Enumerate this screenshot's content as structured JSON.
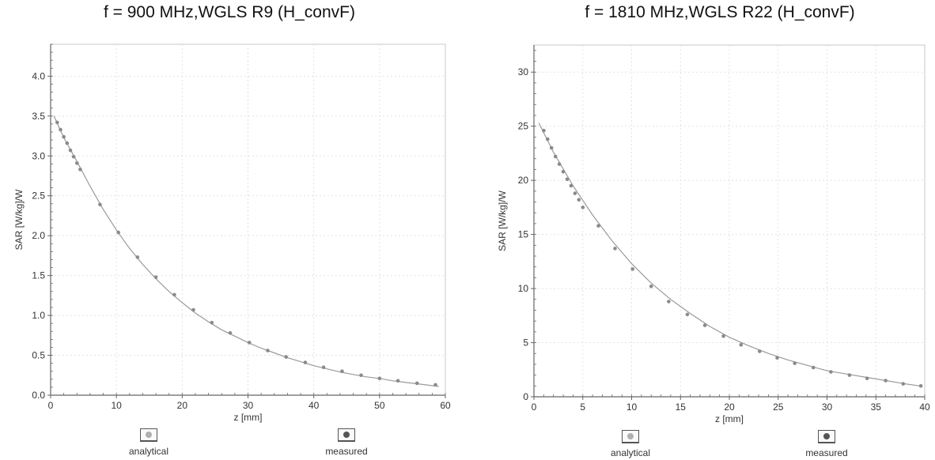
{
  "colors": {
    "frame": "#c8c8c8",
    "axis": "#666666",
    "curve": "#9a9a9a",
    "marker": "#8a8a8a",
    "analytical_swatch": "#b0b0b0",
    "measured_swatch": "#555555"
  },
  "legend": {
    "analytical": "analytical",
    "measured": "measured"
  },
  "chart_data": [
    {
      "type": "scatter",
      "title": "f = 900 MHz,WGLS R9 (H_convF)",
      "xlabel": "z [mm]",
      "ylabel": "SAR [W/kg]/W",
      "xlim": [
        0,
        60
      ],
      "ylim": [
        0,
        4.4
      ],
      "xticks": [
        0,
        10,
        20,
        30,
        40,
        50,
        60
      ],
      "yticks": [
        0.0,
        0.5,
        1.0,
        1.5,
        2.0,
        2.5,
        3.0,
        3.5,
        4.0
      ],
      "ytick_labels": [
        "0.0",
        "0.5",
        "1.0",
        "1.5",
        "2.0",
        "2.5",
        "3.0",
        "3.5",
        "4.0"
      ],
      "grid": true,
      "series": [
        {
          "name": "measured",
          "x": [
            1.0,
            1.5,
            2.0,
            2.5,
            3.0,
            3.5,
            4.0,
            4.5,
            7.5,
            10.3,
            13.2,
            16.0,
            18.8,
            21.7,
            24.5,
            27.3,
            30.2,
            33.0,
            35.8,
            38.7,
            41.5,
            44.3,
            47.2,
            50.0,
            52.8,
            55.7,
            58.5
          ],
          "y": [
            3.42,
            3.33,
            3.24,
            3.16,
            3.07,
            2.99,
            2.91,
            2.83,
            2.39,
            2.04,
            1.73,
            1.48,
            1.26,
            1.07,
            0.91,
            0.78,
            0.66,
            0.56,
            0.48,
            0.41,
            0.35,
            0.3,
            0.25,
            0.21,
            0.18,
            0.15,
            0.13
          ]
        },
        {
          "name": "analytical",
          "x": [
            0.5,
            2,
            4,
            6,
            8,
            10,
            12,
            14,
            16,
            18,
            20,
            22,
            24,
            26,
            28,
            30,
            32,
            34,
            36,
            38,
            40,
            42,
            44,
            46,
            48,
            50,
            52,
            54,
            56,
            58,
            59
          ],
          "y": [
            3.5,
            3.23,
            2.93,
            2.62,
            2.33,
            2.07,
            1.84,
            1.64,
            1.46,
            1.3,
            1.16,
            1.03,
            0.92,
            0.82,
            0.74,
            0.66,
            0.59,
            0.53,
            0.47,
            0.42,
            0.37,
            0.33,
            0.29,
            0.26,
            0.23,
            0.21,
            0.18,
            0.16,
            0.14,
            0.12,
            0.11
          ]
        }
      ]
    },
    {
      "type": "scatter",
      "title": "f = 1810 MHz,WGLS R22 (H_convF)",
      "xlabel": "z [mm]",
      "ylabel": "SAR [W/kg]/W",
      "xlim": [
        0,
        40
      ],
      "ylim": [
        0,
        32.5
      ],
      "xticks": [
        0,
        5,
        10,
        15,
        20,
        25,
        30,
        35,
        40
      ],
      "yticks": [
        0,
        5,
        10,
        15,
        20,
        25,
        30
      ],
      "ytick_labels": [
        "0",
        "5",
        "10",
        "15",
        "20",
        "25",
        "30"
      ],
      "grid": true,
      "series": [
        {
          "name": "measured",
          "x": [
            1.0,
            1.4,
            1.8,
            2.2,
            2.6,
            3.0,
            3.4,
            3.8,
            4.2,
            4.6,
            5.0,
            6.6,
            8.3,
            10.1,
            12.0,
            13.8,
            15.7,
            17.5,
            19.4,
            21.2,
            23.1,
            24.9,
            26.7,
            28.6,
            30.4,
            32.3,
            34.1,
            36.0,
            37.8,
            39.6
          ],
          "y": [
            24.6,
            23.8,
            23.0,
            22.2,
            21.5,
            20.8,
            20.1,
            19.5,
            18.8,
            18.2,
            17.5,
            15.8,
            13.7,
            11.8,
            10.2,
            8.8,
            7.6,
            6.6,
            5.6,
            4.8,
            4.2,
            3.6,
            3.1,
            2.7,
            2.3,
            2.0,
            1.7,
            1.5,
            1.2,
            1.0
          ]
        },
        {
          "name": "analytical",
          "x": [
            0.5,
            2,
            4,
            6,
            8,
            10,
            12,
            14,
            16,
            18,
            20,
            22,
            24,
            26,
            28,
            30,
            32,
            34,
            36,
            38,
            39.5
          ],
          "y": [
            25.3,
            22.6,
            19.5,
            16.8,
            14.4,
            12.3,
            10.5,
            9.0,
            7.7,
            6.5,
            5.5,
            4.7,
            4.0,
            3.4,
            2.9,
            2.4,
            2.1,
            1.8,
            1.5,
            1.2,
            1.0
          ]
        }
      ]
    }
  ]
}
